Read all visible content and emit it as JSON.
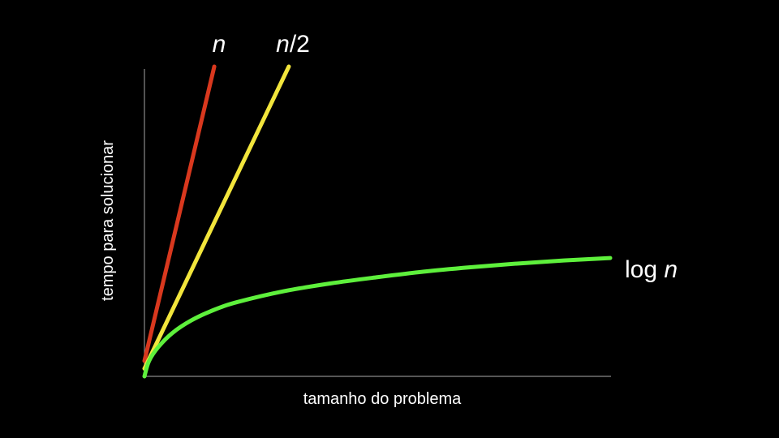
{
  "chart_data": {
    "type": "line",
    "title": "",
    "xlabel": "tamanho do problema",
    "ylabel": "tempo para solucionar",
    "xlim": [
      0,
      100
    ],
    "ylim": [
      0,
      100
    ],
    "grid": false,
    "series": [
      {
        "key": "n",
        "label_parts": [
          {
            "text": "n",
            "italic": true
          }
        ],
        "color": "#d9381e",
        "kind": "linear",
        "points": [
          [
            0,
            5
          ],
          [
            15,
            100
          ]
        ]
      },
      {
        "key": "half",
        "label_parts": [
          {
            "text": "n",
            "italic": true
          },
          {
            "text": "/2",
            "italic": false
          }
        ],
        "color": "#f2e53c",
        "kind": "linear",
        "points": [
          [
            0,
            2.5
          ],
          [
            31,
            100
          ]
        ]
      },
      {
        "key": "log",
        "label_parts": [
          {
            "text": "log ",
            "italic": false
          },
          {
            "text": "n",
            "italic": true
          }
        ],
        "color": "#5ef03c",
        "kind": "curve",
        "points": [
          [
            0,
            0
          ],
          [
            1,
            5
          ],
          [
            3,
            9.5
          ],
          [
            6,
            14
          ],
          [
            10,
            18
          ],
          [
            15,
            21.5
          ],
          [
            20,
            24
          ],
          [
            30,
            27.5
          ],
          [
            40,
            30
          ],
          [
            50,
            32
          ],
          [
            60,
            33.8
          ],
          [
            70,
            35.2
          ],
          [
            80,
            36.4
          ],
          [
            90,
            37.4
          ],
          [
            100,
            38.2
          ]
        ]
      }
    ]
  }
}
